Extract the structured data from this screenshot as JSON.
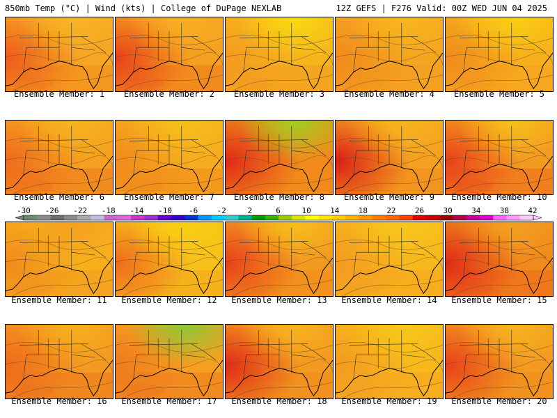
{
  "header": {
    "left": "850mb Temp (°C) | Wind (kts) | College of DuPage NEXLAB",
    "right": "12Z GEFS | F276 Valid: 00Z WED JUN 04 2025"
  },
  "colorbar": {
    "labels": [
      "-30",
      "-26",
      "-22",
      "-18",
      "-14",
      "-10",
      "-6",
      "-2",
      "2",
      "6",
      "10",
      "14",
      "18",
      "22",
      "26",
      "30",
      "34",
      "38",
      "42"
    ],
    "colors": [
      "#6b8e6b",
      "#8a8a8a",
      "#6e6e6e",
      "#8c8c8c",
      "#a9a9a9",
      "#bdbde0",
      "#cc66cc",
      "#e066e0",
      "#cc33cc",
      "#9933cc",
      "#6600cc",
      "#3300cc",
      "#0033cc",
      "#0099ff",
      "#00ccff",
      "#33cccc",
      "#00b38f",
      "#009900",
      "#33b300",
      "#99cc00",
      "#d9e600",
      "#ffff00",
      "#ffe600",
      "#ffcc00",
      "#ffb300",
      "#ff9900",
      "#ff8000",
      "#ff6600",
      "#ff4000",
      "#e60000",
      "#cc0000",
      "#990000",
      "#b3004d",
      "#cc0099",
      "#e600cc",
      "#ff66ff",
      "#ff99ff",
      "#ffccff"
    ]
  },
  "panels": [
    {
      "caption": "Ensemble Member: 1",
      "base": "#f5a623",
      "warm_west": "#ee5a1c",
      "cool_north": "#f6b622",
      "gulf": "#f08a1c"
    },
    {
      "caption": "Ensemble Member: 2",
      "base": "#f5a020",
      "warm_west": "#e8401a",
      "cool_north": "#f7b020",
      "gulf": "#ee7a1e"
    },
    {
      "caption": "Ensemble Member: 3",
      "base": "#f7b51c",
      "warm_west": "#f39a20",
      "cool_north": "#f5dc10",
      "gulf": "#f39a20"
    },
    {
      "caption": "Ensemble Member: 4",
      "base": "#f5a620",
      "warm_west": "#f08a1c",
      "cool_north": "#f7b81c",
      "gulf": "#f39a20"
    },
    {
      "caption": "Ensemble Member: 5",
      "base": "#f7b01c",
      "warm_west": "#f08a1c",
      "cool_north": "#f8d012",
      "gulf": "#f5a020"
    },
    {
      "caption": "Ensemble Member: 6",
      "base": "#f5a020",
      "warm_west": "#ee6a1c",
      "cool_north": "#f6b41e",
      "gulf": "#ee7a1e"
    },
    {
      "caption": "Ensemble Member: 7",
      "base": "#f6ac1e",
      "warm_west": "#f08a1c",
      "cool_north": "#f7c01a",
      "gulf": "#f08a1c"
    },
    {
      "caption": "Ensemble Member: 8",
      "base": "#f28a1c",
      "warm_west": "#e02a18",
      "cool_north": "#9fd020",
      "gulf": "#f08a1c"
    },
    {
      "caption": "Ensemble Member: 9",
      "base": "#f5a020",
      "warm_west": "#d81e16",
      "cool_north": "#f6b41e",
      "gulf": "#f08a1c"
    },
    {
      "caption": "Ensemble Member: 10",
      "base": "#f39a20",
      "warm_west": "#e8401a",
      "cool_north": "#f6c01a",
      "gulf": "#ee6a1c"
    },
    {
      "caption": "Ensemble Member: 11",
      "base": "#f7b01c",
      "warm_west": "#f08a1c",
      "cool_north": "#f5a020",
      "gulf": "#f39a20"
    },
    {
      "caption": "Ensemble Member: 12",
      "base": "#f7c01a",
      "warm_west": "#ee6a1c",
      "cool_north": "#f8d012",
      "gulf": "#f5a620"
    },
    {
      "caption": "Ensemble Member: 13",
      "base": "#f39a20",
      "warm_west": "#e8401a",
      "cool_north": "#f7c01a",
      "gulf": "#f08a1c"
    },
    {
      "caption": "Ensemble Member: 14",
      "base": "#f7b81c",
      "warm_west": "#f39a20",
      "cool_north": "#f7c81a",
      "gulf": "#f5a620"
    },
    {
      "caption": "Ensemble Member: 15",
      "base": "#f08a1c",
      "warm_west": "#e02a18",
      "cool_north": "#f5a020",
      "gulf": "#ee6a1c"
    },
    {
      "caption": "Ensemble Member: 16",
      "base": "#f39a20",
      "warm_west": "#ee6a1c",
      "cool_north": "#f7b01c",
      "gulf": "#ee7a1e"
    },
    {
      "caption": "Ensemble Member: 17",
      "base": "#f5a020",
      "warm_west": "#ee7a1e",
      "cool_north": "#8cc83a",
      "gulf": "#ee7a1e"
    },
    {
      "caption": "Ensemble Member: 18",
      "base": "#f39a20",
      "warm_west": "#e02a18",
      "cool_north": "#f6b41e",
      "gulf": "#f08a1c"
    },
    {
      "caption": "Ensemble Member: 19",
      "base": "#f7b81c",
      "warm_west": "#f39a20",
      "cool_north": "#f7c81a",
      "gulf": "#f5a620"
    },
    {
      "caption": "Ensemble Member: 20",
      "base": "#f39a20",
      "warm_west": "#e8401a",
      "cool_north": "#f6b41e",
      "gulf": "#f08a1c"
    }
  ]
}
